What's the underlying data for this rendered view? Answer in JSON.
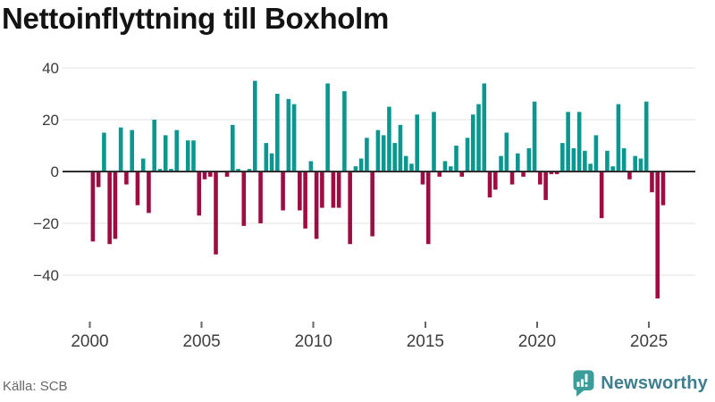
{
  "title": "Nettoinflyttning till Boxholm",
  "source_label": "Källa: SCB",
  "logo": {
    "text": "Newsworthy",
    "icon": "bar-chart-speech-bubble"
  },
  "colors": {
    "positive_bar": "#0a9790",
    "negative_bar": "#9e0d42",
    "zero_line": "#2d2d2d",
    "gridline": "#e3e3e3",
    "y_axis_label": "#3a3a3a",
    "x_axis_label": "#3f3f3f",
    "tick_mark": "#666666",
    "title_text": "#131313",
    "source_text": "#676767",
    "logo_icon": "#3c9e9b",
    "logo_text": "#3e7e8e",
    "background": "#ffffff"
  },
  "chart_data": {
    "type": "bar",
    "title": "Nettoinflyttning till Boxholm",
    "x_unit": "quarter",
    "y_values_by_year": {
      "2000": [
        -27,
        -6,
        15,
        -28
      ],
      "2001": [
        -26,
        17,
        -5,
        16
      ],
      "2002": [
        -13,
        5,
        -16,
        20
      ],
      "2003": [
        1,
        14,
        1,
        16
      ],
      "2004": [
        0,
        12,
        12,
        -17
      ],
      "2005": [
        -3,
        -2,
        -32,
        0
      ],
      "2006": [
        -2,
        18,
        1,
        -21
      ],
      "2007": [
        1,
        35,
        -20,
        11
      ],
      "2008": [
        7,
        30,
        -15,
        28
      ],
      "2009": [
        26,
        -15,
        -22,
        4
      ],
      "2010": [
        -26,
        -14,
        34,
        -14
      ],
      "2011": [
        -14,
        31,
        -28,
        2
      ],
      "2012": [
        5,
        13,
        -25,
        16
      ],
      "2013": [
        14,
        25,
        11,
        18
      ],
      "2014": [
        6,
        3,
        22,
        -5
      ],
      "2015": [
        -28,
        23,
        -2,
        4
      ],
      "2016": [
        2,
        10,
        -2,
        13
      ],
      "2017": [
        22,
        26,
        34,
        -10
      ],
      "2018": [
        -7,
        6,
        15,
        -5
      ],
      "2019": [
        7,
        -2,
        9,
        27
      ],
      "2020": [
        -5,
        -11,
        -1,
        -1
      ],
      "2021": [
        11,
        23,
        9,
        23
      ],
      "2022": [
        8,
        3,
        14,
        -18
      ],
      "2023": [
        8,
        2,
        26,
        9
      ],
      "2024": [
        -3,
        6,
        5,
        27
      ],
      "2025": [
        -8,
        -49,
        -13
      ]
    },
    "yticks": [
      40,
      20,
      0,
      -20,
      -40
    ],
    "ytick_labels": [
      "40",
      "20",
      "0",
      "−20",
      "−40"
    ],
    "xtick_years": [
      2000,
      2005,
      2010,
      2015,
      2020,
      2025
    ],
    "ylim": [
      -52,
      44
    ],
    "grid": true,
    "legend": false,
    "positive_color": "#0a9790",
    "negative_color": "#9e0d42",
    "source": "SCB"
  }
}
